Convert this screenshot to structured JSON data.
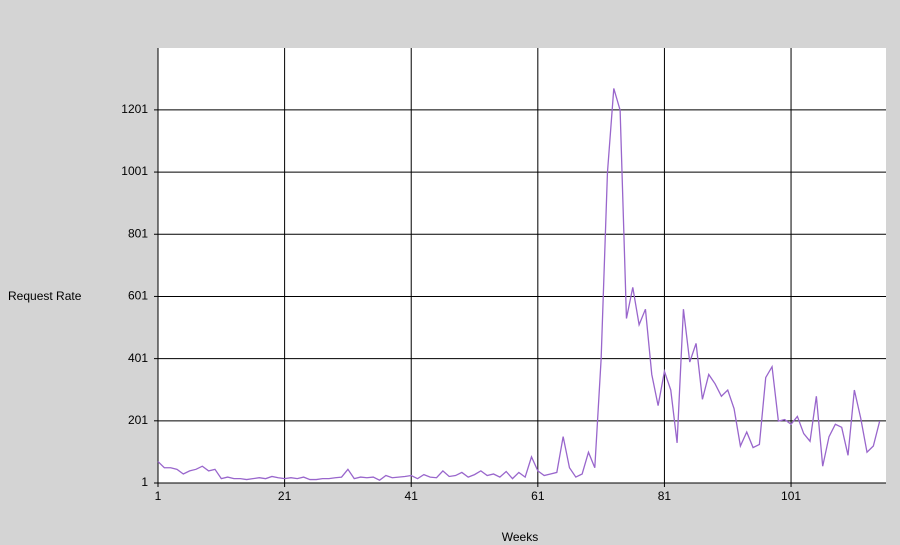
{
  "chart_data": {
    "type": "line",
    "x_label": "Weeks",
    "y_label": "Request Rate",
    "x": [
      1,
      2,
      3,
      4,
      5,
      6,
      7,
      8,
      9,
      10,
      11,
      12,
      13,
      14,
      15,
      16,
      17,
      18,
      19,
      20,
      21,
      22,
      23,
      24,
      25,
      26,
      27,
      28,
      29,
      30,
      31,
      32,
      33,
      34,
      35,
      36,
      37,
      38,
      39,
      40,
      41,
      42,
      43,
      44,
      45,
      46,
      47,
      48,
      49,
      50,
      51,
      52,
      53,
      54,
      55,
      56,
      57,
      58,
      59,
      60,
      61,
      62,
      63,
      64,
      65,
      66,
      67,
      68,
      69,
      70,
      71,
      72,
      73,
      74,
      75,
      76,
      77,
      78,
      79,
      80,
      81,
      82,
      83,
      84,
      85,
      86,
      87,
      88,
      89,
      90,
      91,
      92,
      93,
      94,
      95,
      96,
      97,
      98,
      99,
      100,
      101,
      102,
      103,
      104,
      105,
      106,
      107,
      108,
      109,
      110,
      111,
      112,
      113,
      114,
      115
    ],
    "series": [
      {
        "color": "#9966cc",
        "values": [
          70,
          50,
          50,
          45,
          30,
          40,
          45,
          55,
          40,
          45,
          15,
          20,
          15,
          15,
          12,
          15,
          18,
          15,
          22,
          18,
          15,
          18,
          15,
          20,
          12,
          12,
          15,
          15,
          18,
          20,
          45,
          15,
          20,
          18,
          20,
          10,
          25,
          18,
          20,
          22,
          25,
          15,
          28,
          20,
          18,
          40,
          22,
          25,
          35,
          20,
          28,
          40,
          25,
          30,
          20,
          38,
          15,
          35,
          20,
          85,
          40,
          25,
          30,
          35,
          150,
          50,
          20,
          30,
          100,
          50,
          400,
          1000,
          1270,
          1200,
          530,
          630,
          510,
          560,
          350,
          250,
          360,
          300,
          130,
          560,
          390,
          450,
          270,
          350,
          320,
          280,
          300,
          240,
          120,
          165,
          115,
          125,
          340,
          375,
          200,
          205,
          190,
          215,
          160,
          135,
          280,
          55,
          150,
          190,
          180,
          90,
          300,
          210,
          100,
          120,
          200
        ]
      }
    ],
    "xlim": [
      1,
      116
    ],
    "ylim": [
      1,
      1400
    ],
    "xticks": [
      1,
      21,
      41,
      61,
      81,
      101
    ],
    "yticks": [
      1,
      201,
      401,
      601,
      801,
      1001,
      1201
    ],
    "grid": true
  }
}
